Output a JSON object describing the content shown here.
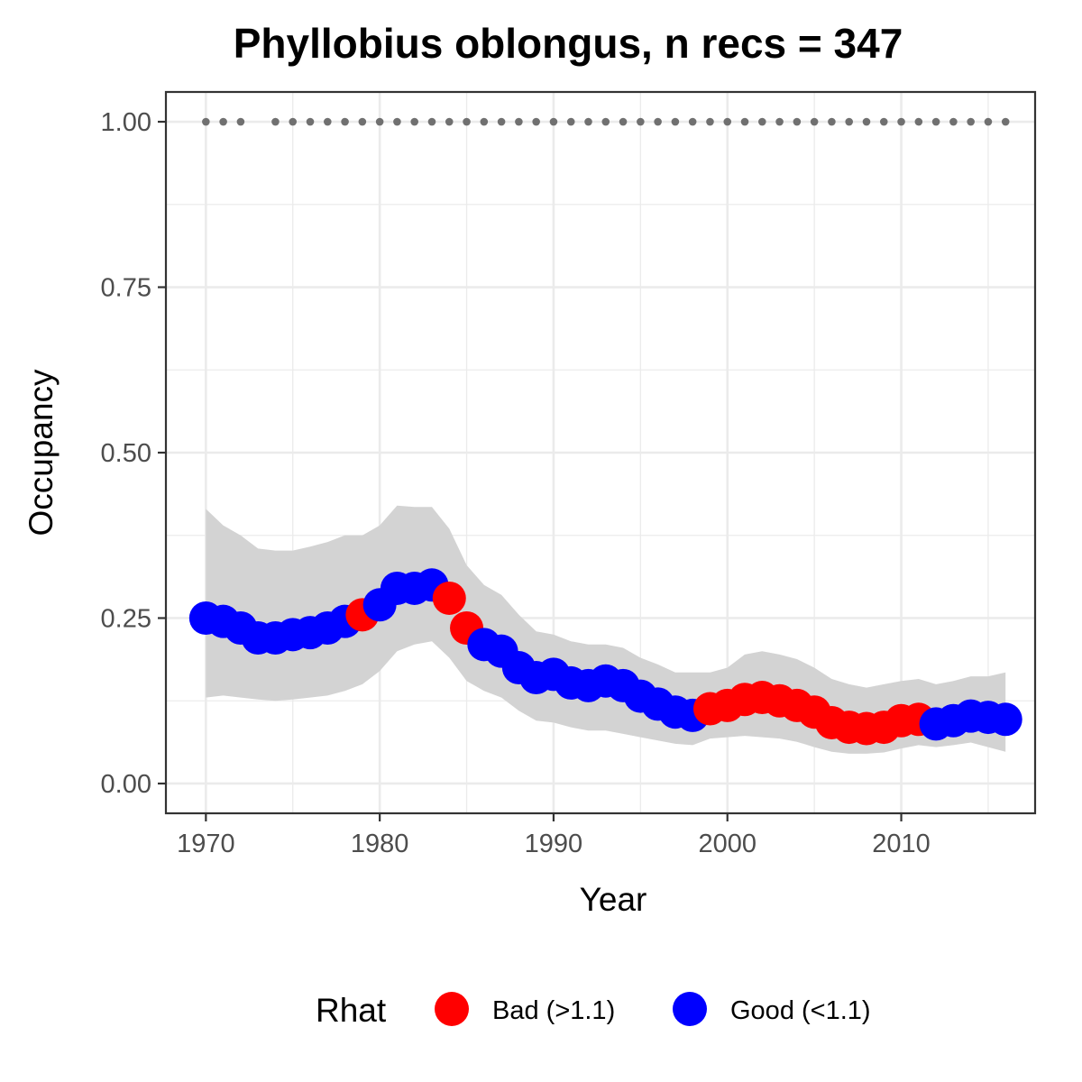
{
  "chart_data": {
    "type": "line",
    "title": "Phyllobius oblongus, n recs = 347",
    "xlabel": "Year",
    "ylabel": "Occupancy",
    "xlim": [
      1967.7,
      2017.7
    ],
    "ylim": [
      -0.045,
      1.045
    ],
    "x_ticks": [
      1970,
      1980,
      1990,
      2000,
      2010
    ],
    "x_tick_labels": [
      "1970",
      "1980",
      "1990",
      "2000",
      "2010"
    ],
    "y_ticks": [
      0,
      0.25,
      0.5,
      0.75,
      1
    ],
    "y_tick_labels": [
      "0.00",
      "0.25",
      "0.50",
      "0.75",
      "1.00"
    ],
    "grid": true,
    "legend": {
      "title": "Rhat",
      "placement": "bottom",
      "entries": [
        {
          "label": "Bad (>1.1)",
          "color": "#ff0000"
        },
        {
          "label": "Good (<1.1)",
          "color": "#0000ff"
        }
      ]
    },
    "colors": {
      "bad": "#ff0000",
      "good": "#0000ff",
      "ribbon": "#d3d3d3",
      "dots": "#707070"
    },
    "years": [
      1970,
      1971,
      1972,
      1973,
      1974,
      1975,
      1976,
      1977,
      1978,
      1979,
      1980,
      1981,
      1982,
      1983,
      1984,
      1985,
      1986,
      1987,
      1988,
      1989,
      1990,
      1991,
      1992,
      1993,
      1994,
      1995,
      1996,
      1997,
      1998,
      1999,
      2000,
      2001,
      2002,
      2003,
      2004,
      2005,
      2006,
      2007,
      2008,
      2009,
      2010,
      2011,
      2012,
      2013,
      2014,
      2015,
      2016
    ],
    "mean": [
      0.25,
      0.245,
      0.235,
      0.22,
      0.22,
      0.225,
      0.228,
      0.235,
      0.245,
      0.255,
      0.27,
      0.295,
      0.295,
      0.3,
      0.28,
      0.235,
      0.21,
      0.2,
      0.175,
      0.16,
      0.165,
      0.152,
      0.148,
      0.155,
      0.148,
      0.132,
      0.12,
      0.108,
      0.103,
      0.113,
      0.118,
      0.127,
      0.13,
      0.125,
      0.118,
      0.108,
      0.092,
      0.085,
      0.083,
      0.085,
      0.095,
      0.097,
      0.09,
      0.095,
      0.102,
      0.1,
      0.097
    ],
    "lower": [
      0.13,
      0.133,
      0.13,
      0.127,
      0.125,
      0.127,
      0.13,
      0.133,
      0.14,
      0.15,
      0.17,
      0.2,
      0.21,
      0.215,
      0.19,
      0.155,
      0.14,
      0.13,
      0.11,
      0.095,
      0.092,
      0.085,
      0.08,
      0.08,
      0.075,
      0.07,
      0.065,
      0.06,
      0.058,
      0.068,
      0.07,
      0.072,
      0.07,
      0.068,
      0.063,
      0.055,
      0.048,
      0.045,
      0.045,
      0.047,
      0.053,
      0.058,
      0.055,
      0.058,
      0.062,
      0.055,
      0.048
    ],
    "upper": [
      0.415,
      0.39,
      0.375,
      0.355,
      0.352,
      0.352,
      0.358,
      0.365,
      0.375,
      0.375,
      0.39,
      0.42,
      0.418,
      0.418,
      0.385,
      0.33,
      0.3,
      0.285,
      0.255,
      0.23,
      0.225,
      0.215,
      0.21,
      0.21,
      0.205,
      0.19,
      0.18,
      0.168,
      0.168,
      0.168,
      0.175,
      0.195,
      0.2,
      0.195,
      0.188,
      0.175,
      0.158,
      0.15,
      0.145,
      0.15,
      0.155,
      0.158,
      0.15,
      0.155,
      0.162,
      0.162,
      0.168
    ],
    "rhat_status": [
      "good",
      "good",
      "good",
      "good",
      "good",
      "good",
      "good",
      "good",
      "good",
      "bad",
      "good",
      "good",
      "good",
      "good",
      "bad",
      "bad",
      "good",
      "good",
      "good",
      "good",
      "good",
      "good",
      "good",
      "good",
      "good",
      "good",
      "good",
      "good",
      "good",
      "bad",
      "bad",
      "bad",
      "bad",
      "bad",
      "bad",
      "bad",
      "bad",
      "bad",
      "bad",
      "bad",
      "bad",
      "bad",
      "good",
      "good",
      "good",
      "good",
      "good"
    ],
    "record_years": [
      1970,
      1971,
      1972,
      1974,
      1975,
      1976,
      1977,
      1978,
      1979,
      1980,
      1981,
      1982,
      1983,
      1984,
      1985,
      1986,
      1987,
      1988,
      1989,
      1990,
      1991,
      1992,
      1993,
      1994,
      1995,
      1996,
      1997,
      1998,
      1999,
      2000,
      2001,
      2002,
      2003,
      2004,
      2005,
      2006,
      2007,
      2008,
      2009,
      2010,
      2011,
      2012,
      2013,
      2014,
      2015,
      2016
    ],
    "record_y": 1.0
  }
}
